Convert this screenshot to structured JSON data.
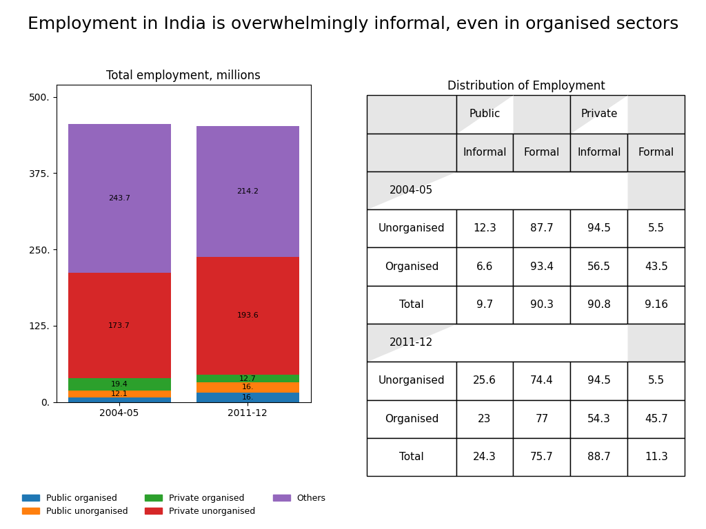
{
  "title": "Employment in India is overwhelmingly informal, even in organised sectors",
  "chart_data": [
    {
      "type": "bar",
      "stacked": true,
      "title": "Total employment, millions",
      "categories": [
        "2004-05",
        "2011-12"
      ],
      "series": [
        {
          "name": "Public organised",
          "values": [
            7.1,
            16.0
          ],
          "value_labels": [
            null,
            "16."
          ]
        },
        {
          "name": "Public unorganised",
          "values": [
            12.1,
            16.0
          ],
          "value_labels": [
            "12.1",
            "16."
          ]
        },
        {
          "name": "Private organised",
          "values": [
            19.4,
            12.7
          ],
          "value_labels": [
            "19.4",
            "12.7"
          ]
        },
        {
          "name": "Private unorganised",
          "values": [
            173.7,
            193.6
          ],
          "value_labels": [
            "173.7",
            "193.6"
          ]
        },
        {
          "name": "Others",
          "values": [
            243.7,
            214.2
          ],
          "value_labels": [
            "243.7",
            "214.2"
          ]
        }
      ],
      "ylim": [
        0,
        520
      ],
      "yticks": [
        {
          "value": 0,
          "label": "0."
        },
        {
          "value": 125,
          "label": "125."
        },
        {
          "value": 250,
          "label": "250."
        },
        {
          "value": 375,
          "label": "375."
        },
        {
          "value": 500,
          "label": "500."
        }
      ],
      "grid": false,
      "legend": "lower left",
      "data_labels": true
    },
    {
      "type": "table",
      "title": "Distribution of Employment",
      "column_groups": [
        "Public",
        "Private"
      ],
      "columns": [
        "Informal",
        "Formal",
        "Informal",
        "Formal"
      ],
      "sections": [
        {
          "title": "2004-05",
          "rows": [
            {
              "name": "Unorganised",
              "values": [
                12.3,
                87.7,
                94.5,
                5.5
              ]
            },
            {
              "name": "Organised",
              "values": [
                6.6,
                93.4,
                56.5,
                43.5
              ]
            },
            {
              "name": "Total",
              "values": [
                9.7,
                90.3,
                90.8,
                9.16
              ]
            }
          ]
        },
        {
          "title": "2011-12",
          "rows": [
            {
              "name": "Unorganised",
              "values": [
                25.6,
                74.4,
                94.5,
                5.5
              ]
            },
            {
              "name": "Organised",
              "values": [
                23,
                77,
                54.3,
                45.7
              ]
            },
            {
              "name": "Total",
              "values": [
                24.3,
                75.7,
                88.7,
                11.3
              ]
            }
          ]
        }
      ]
    }
  ]
}
